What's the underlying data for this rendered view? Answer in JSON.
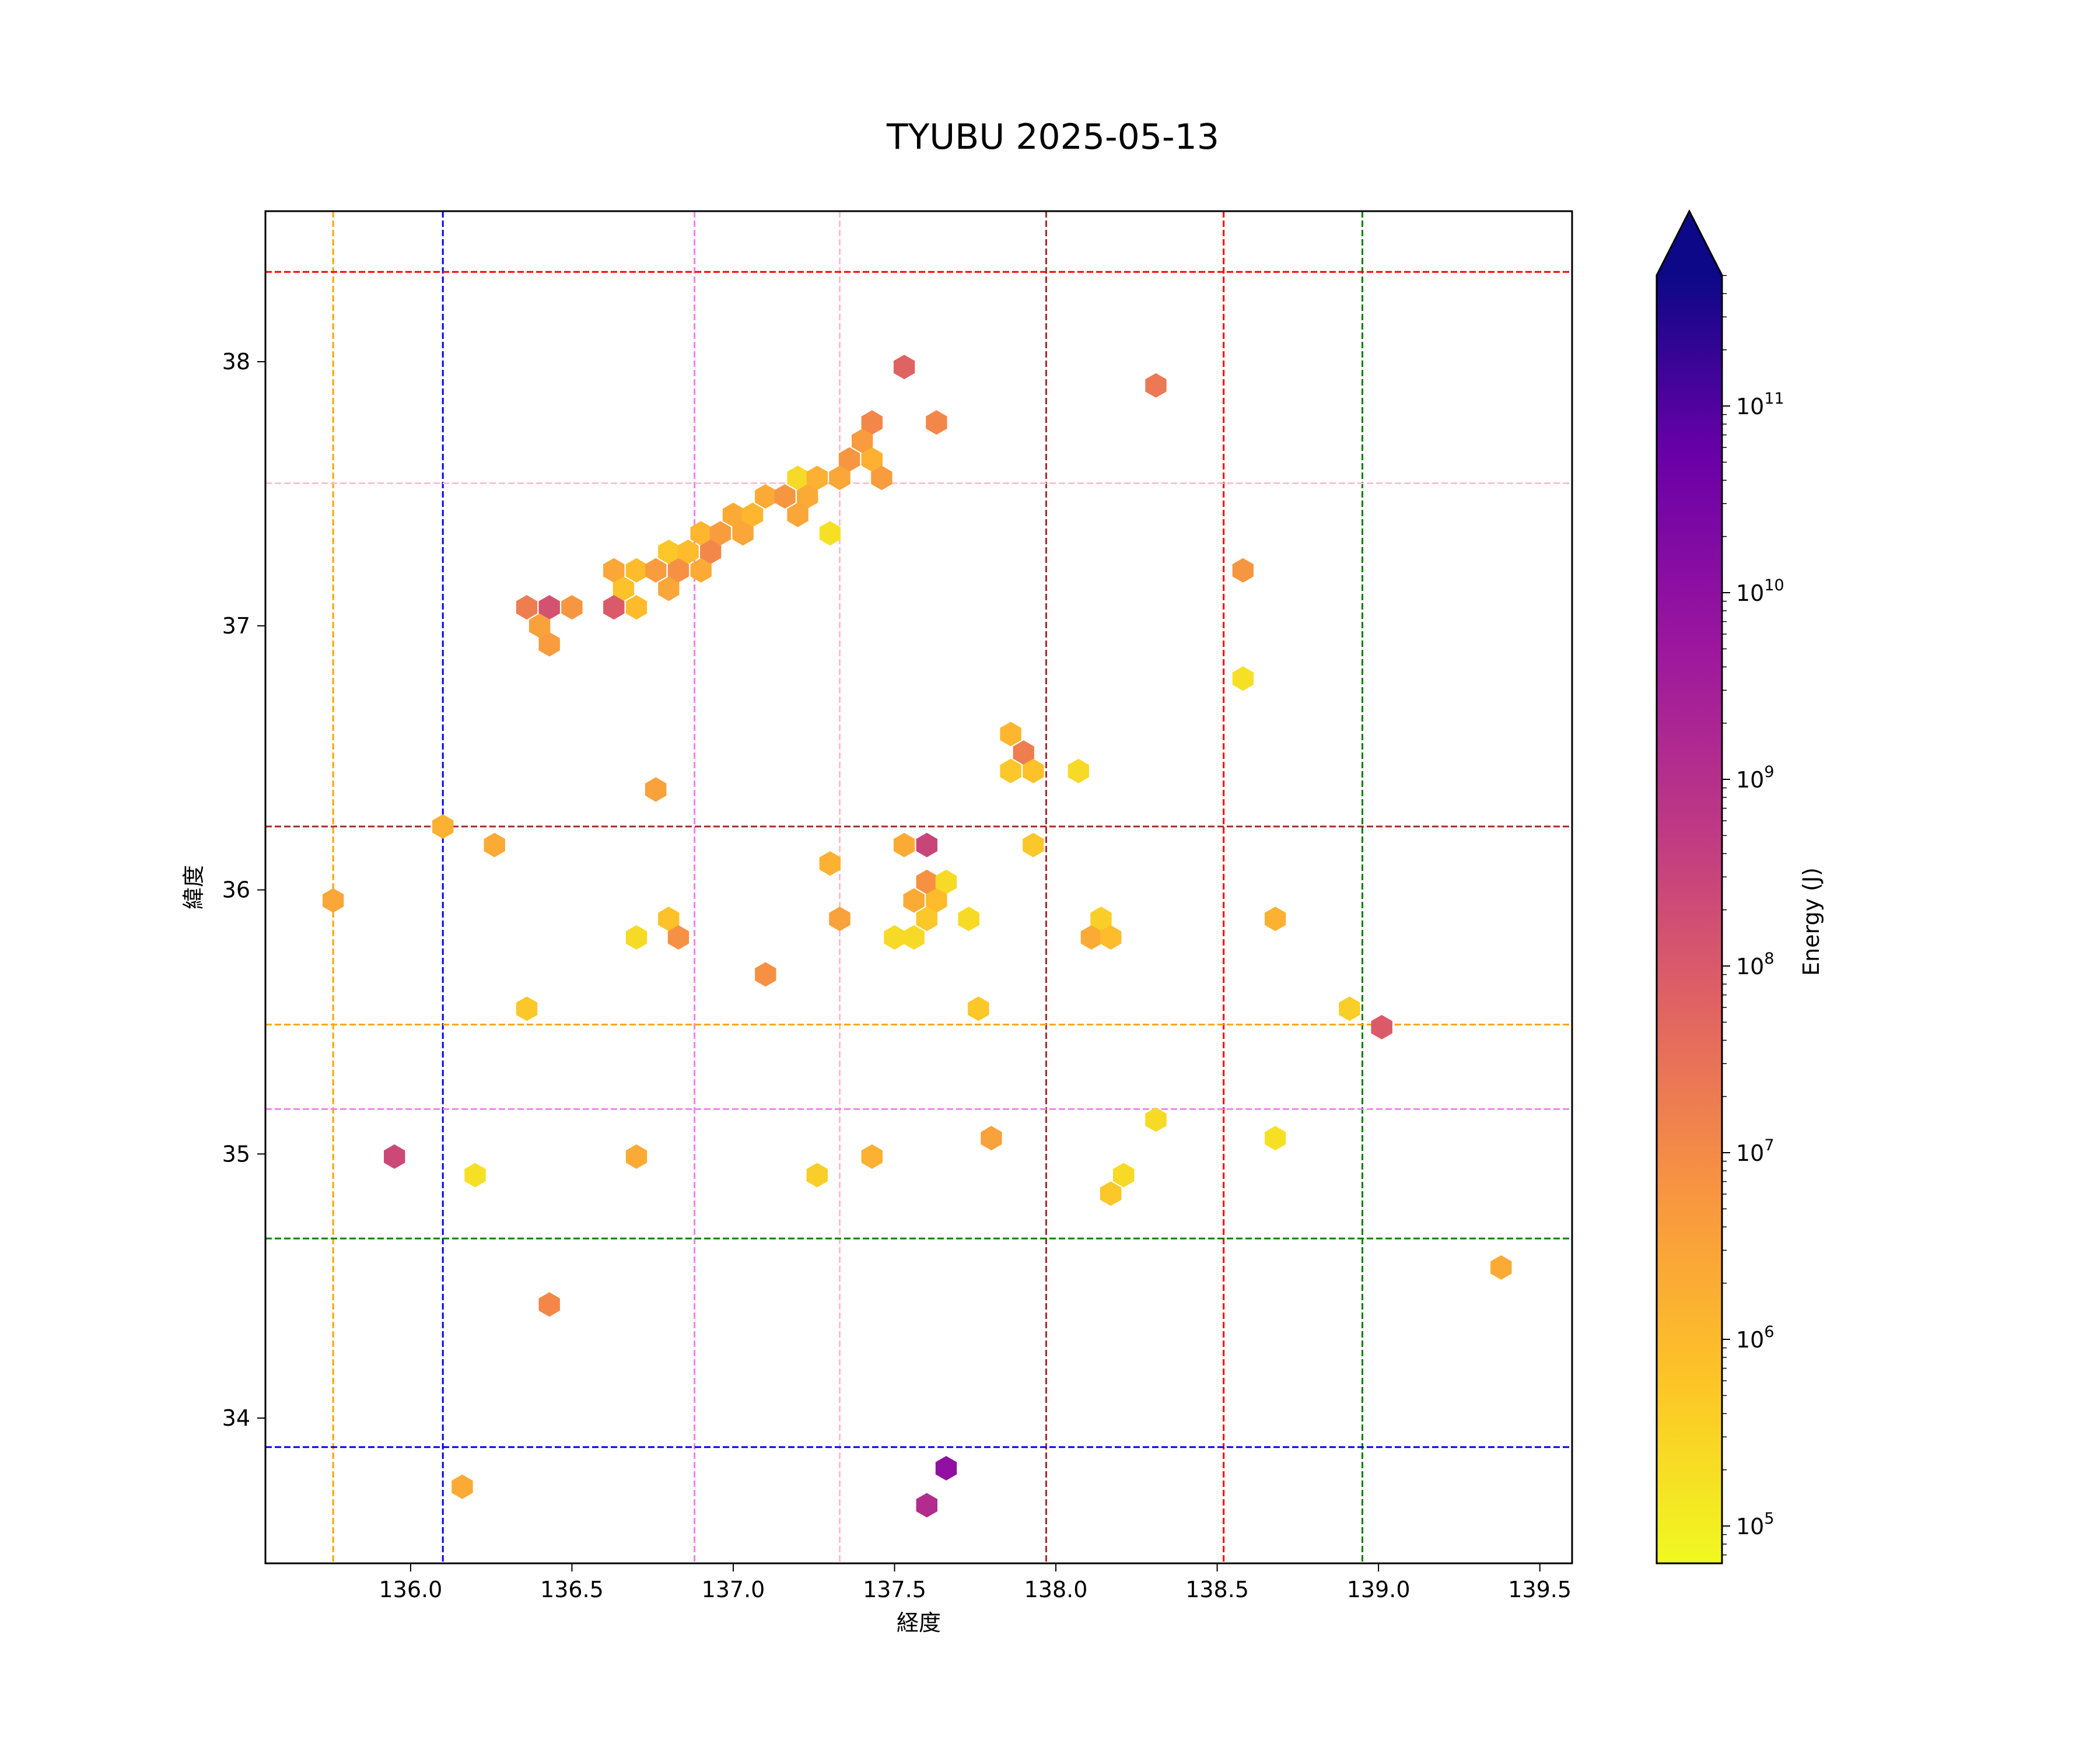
{
  "chart_data": {
    "type": "hexbin",
    "title": "TYUBU 2025-05-13",
    "xlabel": "経度",
    "ylabel": "緯度",
    "xlim": [
      135.55,
      139.6
    ],
    "ylim": [
      33.45,
      38.57
    ],
    "xticks": [
      "136.0",
      "136.5",
      "137.0",
      "137.5",
      "138.0",
      "138.5",
      "139.0",
      "139.5"
    ],
    "yticks": [
      "34",
      "35",
      "36",
      "37",
      "38"
    ],
    "grid": false,
    "reference_lines": {
      "vertical": [
        {
          "x": 135.76,
          "color": "#ffa500"
        },
        {
          "x": 136.1,
          "color": "#0000ff"
        },
        {
          "x": 136.88,
          "color": "#ee82ee"
        },
        {
          "x": 137.33,
          "color": "#ffc0cb"
        },
        {
          "x": 137.97,
          "color": "#a52a2a"
        },
        {
          "x": 138.52,
          "color": "#ff0000"
        },
        {
          "x": 138.95,
          "color": "#008000"
        }
      ],
      "horizontal": [
        {
          "y": 38.34,
          "color": "#ff0000"
        },
        {
          "y": 37.54,
          "color": "#ffc0cb"
        },
        {
          "y": 36.24,
          "color": "#a52a2a"
        },
        {
          "y": 35.49,
          "color": "#ffa500"
        },
        {
          "y": 35.17,
          "color": "#ee82ee"
        },
        {
          "y": 34.68,
          "color": "#008000"
        },
        {
          "y": 33.89,
          "color": "#0000ff"
        }
      ]
    },
    "colorbar": {
      "label": "Energy (J)",
      "scale": "log",
      "colormap": "plasma_r",
      "range_log10": [
        4.8,
        11.7
      ],
      "ticks": [
        {
          "base": "10",
          "exp": "5",
          "log10": 5
        },
        {
          "base": "10",
          "exp": "6",
          "log10": 6
        },
        {
          "base": "10",
          "exp": "7",
          "log10": 7
        },
        {
          "base": "10",
          "exp": "8",
          "log10": 8
        },
        {
          "base": "10",
          "exp": "9",
          "log10": 9
        },
        {
          "base": "10",
          "exp": "10",
          "log10": 10
        },
        {
          "base": "10",
          "exp": "11",
          "log10": 11
        }
      ],
      "extend": "max"
    },
    "points": [
      [
        137.53,
        37.98,
        7.6
      ],
      [
        138.31,
        37.91,
        7.1
      ],
      [
        137.43,
        37.77,
        6.8
      ],
      [
        137.63,
        37.77,
        6.8
      ],
      [
        137.4,
        37.7,
        6.4
      ],
      [
        137.36,
        37.63,
        6.5
      ],
      [
        137.43,
        37.63,
        6.0
      ],
      [
        137.2,
        37.56,
        5.3
      ],
      [
        137.26,
        37.56,
        6.0
      ],
      [
        137.33,
        37.56,
        6.2
      ],
      [
        137.46,
        37.56,
        6.4
      ],
      [
        137.1,
        37.49,
        6.1
      ],
      [
        137.16,
        37.49,
        6.5
      ],
      [
        137.23,
        37.49,
        6.1
      ],
      [
        137.0,
        37.42,
        6.1
      ],
      [
        137.06,
        37.42,
        5.9
      ],
      [
        137.2,
        37.42,
        6.2
      ],
      [
        136.9,
        37.35,
        5.9
      ],
      [
        136.96,
        37.35,
        6.4
      ],
      [
        137.03,
        37.35,
        6.2
      ],
      [
        137.3,
        37.35,
        5.2
      ],
      [
        136.8,
        37.28,
        5.6
      ],
      [
        136.86,
        37.28,
        5.8
      ],
      [
        136.93,
        37.28,
        6.8
      ],
      [
        136.63,
        37.21,
        6.2
      ],
      [
        136.7,
        37.21,
        5.8
      ],
      [
        136.76,
        37.21,
        6.4
      ],
      [
        136.83,
        37.21,
        6.6
      ],
      [
        136.9,
        37.21,
        6.1
      ],
      [
        136.66,
        37.14,
        5.7
      ],
      [
        136.8,
        37.14,
        6.2
      ],
      [
        136.36,
        37.07,
        7.0
      ],
      [
        136.43,
        37.07,
        8.0
      ],
      [
        136.5,
        37.07,
        6.5
      ],
      [
        136.63,
        37.07,
        7.8
      ],
      [
        136.7,
        37.07,
        5.8
      ],
      [
        136.4,
        37.0,
        6.3
      ],
      [
        136.43,
        36.93,
        6.4
      ],
      [
        138.58,
        37.21,
        6.5
      ],
      [
        138.58,
        36.8,
        5.2
      ],
      [
        137.86,
        36.59,
        5.9
      ],
      [
        137.9,
        36.52,
        7.0
      ],
      [
        137.86,
        36.45,
        5.6
      ],
      [
        137.93,
        36.45,
        5.7
      ],
      [
        138.07,
        36.45,
        5.3
      ],
      [
        136.76,
        36.38,
        6.3
      ],
      [
        136.1,
        36.24,
        6.0
      ],
      [
        136.26,
        36.17,
        6.1
      ],
      [
        137.53,
        36.17,
        6.1
      ],
      [
        137.6,
        36.17,
        8.3
      ],
      [
        137.93,
        36.17,
        5.6
      ],
      [
        137.3,
        36.1,
        6.0
      ],
      [
        137.6,
        36.03,
        6.6
      ],
      [
        137.66,
        36.03,
        5.3
      ],
      [
        135.76,
        35.96,
        6.2
      ],
      [
        137.56,
        35.96,
        6.1
      ],
      [
        137.63,
        35.96,
        5.8
      ],
      [
        136.8,
        35.89,
        5.7
      ],
      [
        137.33,
        35.89,
        6.3
      ],
      [
        137.6,
        35.89,
        5.6
      ],
      [
        137.73,
        35.89,
        5.3
      ],
      [
        138.14,
        35.89,
        5.5
      ],
      [
        138.68,
        35.89,
        6.0
      ],
      [
        136.7,
        35.82,
        5.3
      ],
      [
        136.83,
        35.82,
        6.6
      ],
      [
        137.5,
        35.82,
        5.3
      ],
      [
        137.56,
        35.82,
        5.3
      ],
      [
        138.11,
        35.82,
        6.1
      ],
      [
        138.17,
        35.82,
        5.8
      ],
      [
        137.1,
        35.68,
        6.6
      ],
      [
        136.36,
        35.55,
        5.6
      ],
      [
        137.76,
        35.55,
        5.6
      ],
      [
        138.91,
        35.55,
        5.5
      ],
      [
        139.01,
        35.48,
        7.8
      ],
      [
        138.31,
        35.13,
        5.3
      ],
      [
        137.8,
        35.06,
        6.3
      ],
      [
        138.68,
        35.06,
        5.2
      ],
      [
        135.95,
        34.99,
        8.2
      ],
      [
        136.7,
        34.99,
        6.1
      ],
      [
        137.43,
        34.99,
        6.0
      ],
      [
        136.2,
        34.92,
        5.2
      ],
      [
        137.26,
        34.92,
        5.5
      ],
      [
        138.21,
        34.92,
        5.3
      ],
      [
        138.17,
        34.85,
        5.6
      ],
      [
        139.38,
        34.57,
        6.1
      ],
      [
        136.43,
        34.43,
        6.8
      ],
      [
        136.16,
        33.74,
        6.1
      ],
      [
        137.66,
        33.81,
        9.6
      ],
      [
        137.6,
        33.67,
        8.9
      ]
    ]
  }
}
